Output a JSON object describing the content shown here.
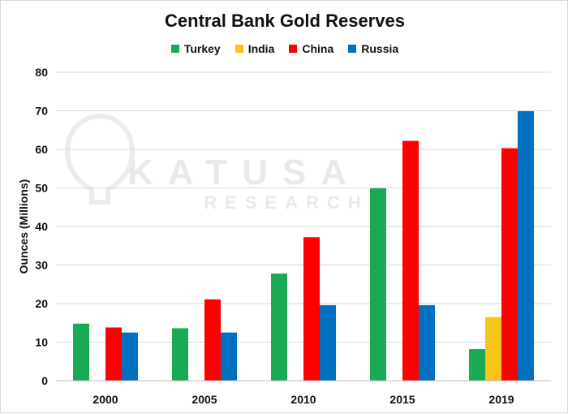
{
  "chart_data": {
    "type": "bar",
    "title": "Central Bank Gold Reserves",
    "ylabel": "Ounces (Millions)",
    "xlabel": "",
    "categories": [
      "2000",
      "2005",
      "2010",
      "2015",
      "2019"
    ],
    "ylim": [
      0,
      80
    ],
    "yticks": [
      0,
      10,
      20,
      30,
      40,
      50,
      60,
      70,
      80
    ],
    "grid": true,
    "legend_position": "top",
    "series": [
      {
        "name": "Turkey",
        "color": "#1aaa55",
        "values": [
          14.8,
          13.6,
          27.8,
          49.9,
          8.2
        ]
      },
      {
        "name": "India",
        "color": "#f5c518",
        "values": [
          0,
          0,
          0,
          0,
          16.5
        ]
      },
      {
        "name": "China",
        "color": "#ff0000",
        "values": [
          13.8,
          21.1,
          37.2,
          62.2,
          60.3
        ]
      },
      {
        "name": "Russia",
        "color": "#0070c0",
        "values": [
          12.5,
          12.5,
          19.6,
          19.6,
          69.9
        ]
      }
    ]
  },
  "watermark": {
    "name": "KATUSA",
    "sub": "RESEARCH"
  }
}
